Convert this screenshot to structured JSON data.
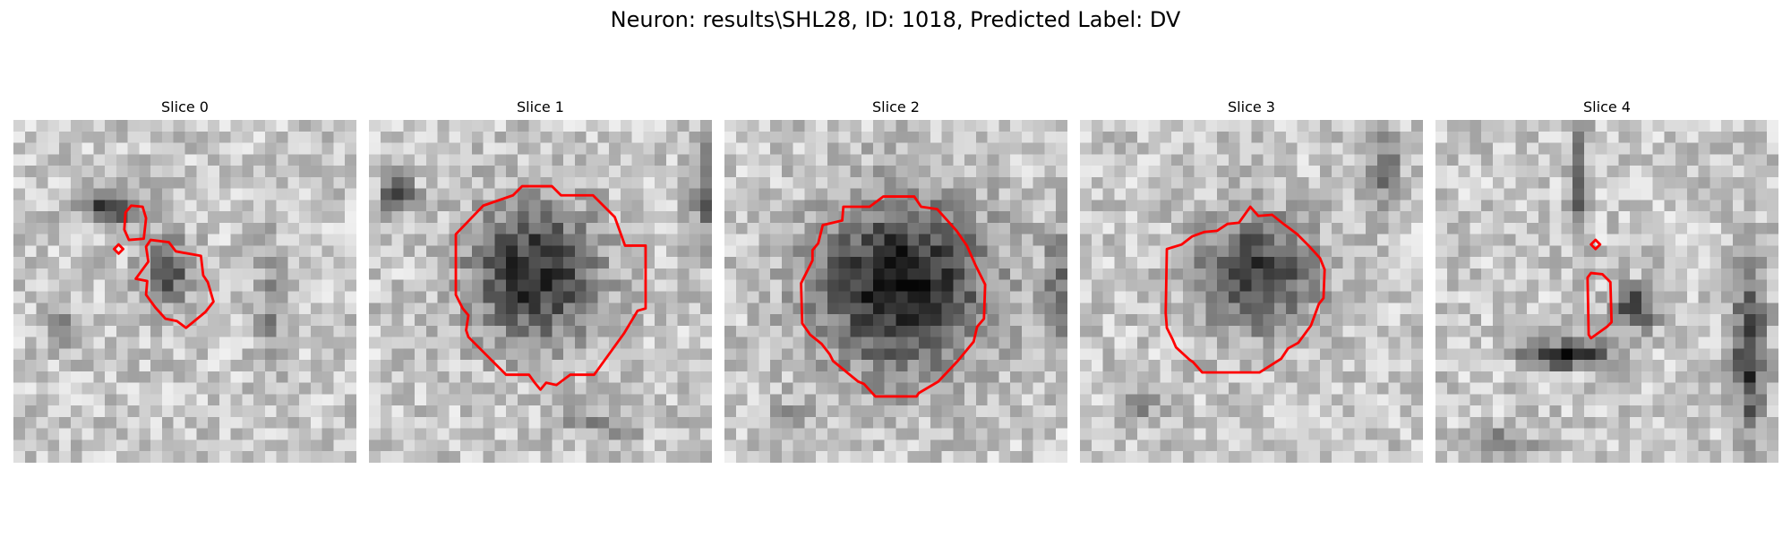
{
  "figure": {
    "title": "Neuron: results\\SHL28, ID: 1018, Predicted Label: DV",
    "contour_color": "#ff0000",
    "colormap": "grayscale",
    "axes_visible": false
  },
  "slices": [
    {
      "label": "Slice 0"
    },
    {
      "label": "Slice 1"
    },
    {
      "label": "Slice 2"
    },
    {
      "label": "Slice 3"
    },
    {
      "label": "Slice 4"
    }
  ]
}
